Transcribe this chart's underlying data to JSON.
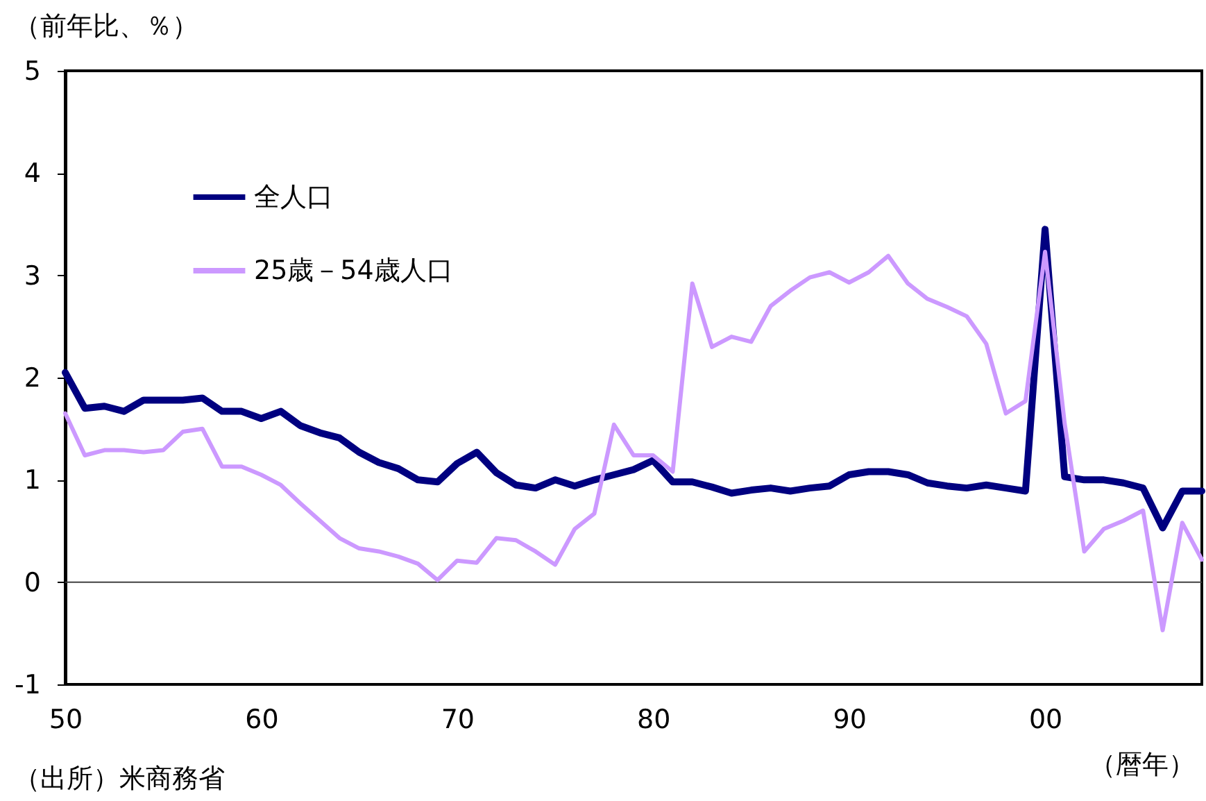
{
  "chart_data": {
    "type": "line",
    "ylabel": "（前年比、％）",
    "annotations": [
      "（出所）米商務省",
      "（暦年）"
    ],
    "x": [
      1950,
      1951,
      1952,
      1953,
      1954,
      1955,
      1956,
      1957,
      1958,
      1959,
      1960,
      1961,
      1962,
      1963,
      1964,
      1965,
      1966,
      1967,
      1968,
      1969,
      1970,
      1971,
      1972,
      1973,
      1974,
      1975,
      1976,
      1977,
      1978,
      1979,
      1980,
      1981,
      1982,
      1983,
      1984,
      1985,
      1986,
      1987,
      1988,
      1989,
      1990,
      1991,
      1992,
      1993,
      1994,
      1995,
      1996,
      1997,
      1998,
      1999,
      2000,
      2001,
      2002,
      2003,
      2004,
      2005,
      2006,
      2007,
      2008
    ],
    "series": [
      {
        "name": "全人口",
        "color": "#000080",
        "values": [
          2.05,
          1.7,
          1.72,
          1.67,
          1.78,
          1.78,
          1.78,
          1.8,
          1.67,
          1.67,
          1.6,
          1.67,
          1.53,
          1.46,
          1.41,
          1.27,
          1.17,
          1.11,
          1.0,
          0.98,
          1.16,
          1.27,
          1.07,
          0.95,
          0.92,
          1.0,
          0.94,
          1.0,
          1.05,
          1.1,
          1.19,
          0.98,
          0.98,
          0.93,
          0.87,
          0.9,
          0.92,
          0.89,
          0.92,
          0.94,
          1.05,
          1.08,
          1.08,
          1.05,
          0.97,
          0.94,
          0.92,
          0.95,
          0.92,
          0.89,
          3.45,
          1.03,
          1.0,
          1.0,
          0.97,
          0.92,
          0.53,
          0.89,
          0.89
        ]
      },
      {
        "name": "25歳－54歳人口",
        "color": "#cc99ff",
        "values": [
          1.65,
          1.24,
          1.29,
          1.29,
          1.27,
          1.29,
          1.47,
          1.5,
          1.13,
          1.13,
          1.05,
          0.95,
          0.77,
          0.6,
          0.43,
          0.33,
          0.3,
          0.25,
          0.18,
          0.02,
          0.21,
          0.19,
          0.43,
          0.41,
          0.3,
          0.17,
          0.52,
          0.67,
          1.54,
          1.24,
          1.24,
          1.08,
          2.92,
          2.3,
          2.4,
          2.35,
          2.7,
          2.85,
          2.98,
          3.03,
          2.93,
          3.03,
          3.19,
          2.92,
          2.77,
          2.69,
          2.6,
          2.33,
          1.65,
          1.77,
          3.23,
          1.55,
          0.3,
          0.52,
          0.6,
          0.7,
          -0.47,
          0.58,
          0.22
        ]
      }
    ],
    "xlim": [
      1950,
      2008
    ],
    "xticks": [
      {
        "value": 1950,
        "label": "50"
      },
      {
        "value": 1960,
        "label": "60"
      },
      {
        "value": 1970,
        "label": "70"
      },
      {
        "value": 1980,
        "label": "80"
      },
      {
        "value": 1990,
        "label": "90"
      },
      {
        "value": 2000,
        "label": "00"
      }
    ],
    "ylim": [
      -1,
      5
    ],
    "yticks": [
      -1,
      0,
      1,
      2,
      3,
      4,
      5
    ],
    "ref_lines": [
      {
        "axis": "y",
        "value": 0,
        "color": "#404040"
      }
    ],
    "legend": "top left",
    "grid": false
  }
}
